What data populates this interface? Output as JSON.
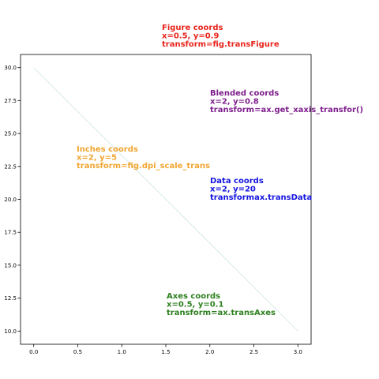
{
  "chart_data": {
    "type": "line",
    "title": "",
    "xlabel": "",
    "ylabel": "",
    "xlim": [
      -0.15,
      3.15
    ],
    "ylim": [
      9.0,
      31.0
    ],
    "grid": false,
    "x_ticks": [
      0.0,
      0.5,
      1.0,
      1.5,
      2.0,
      2.5,
      3.0
    ],
    "x_tick_labels": [
      "0.0",
      "0.5",
      "1.0",
      "1.5",
      "2.0",
      "2.5",
      "3.0"
    ],
    "y_ticks": [
      10.0,
      12.5,
      15.0,
      17.5,
      20.0,
      22.5,
      25.0,
      27.5,
      30.0
    ],
    "y_tick_labels": [
      "10.0",
      "12.5",
      "15.0",
      "17.5",
      "20.0",
      "22.5",
      "25.0",
      "27.5",
      "30.0"
    ],
    "series": [
      {
        "x": [
          0,
          3
        ],
        "y": [
          30,
          10
        ],
        "color": "#d6ece6"
      }
    ],
    "annotations": [
      {
        "id": "figure",
        "lines": [
          "Figure coords",
          "x=0.5, y=0.9",
          "transform=fig.transFigure"
        ],
        "color": "#e8241c"
      },
      {
        "id": "blended",
        "lines": [
          "Blended coords",
          "x=2, y=0.8",
          "transform=ax.get_xaxis_transfor()"
        ],
        "color": "#7e1e8c"
      },
      {
        "id": "inches",
        "lines": [
          "Inches coords",
          "x=2, y=5",
          "transform=fig.dpi_scale_trans"
        ],
        "color": "#f0a530"
      },
      {
        "id": "data",
        "lines": [
          "Data coords",
          "x=2, y=20",
          "transformax.transData"
        ],
        "color": "#1414e0"
      },
      {
        "id": "axes",
        "lines": [
          "Axes coords",
          "x=0.5, y=0.1",
          "transform=ax.transAxes"
        ],
        "color": "#2e8020"
      }
    ]
  }
}
